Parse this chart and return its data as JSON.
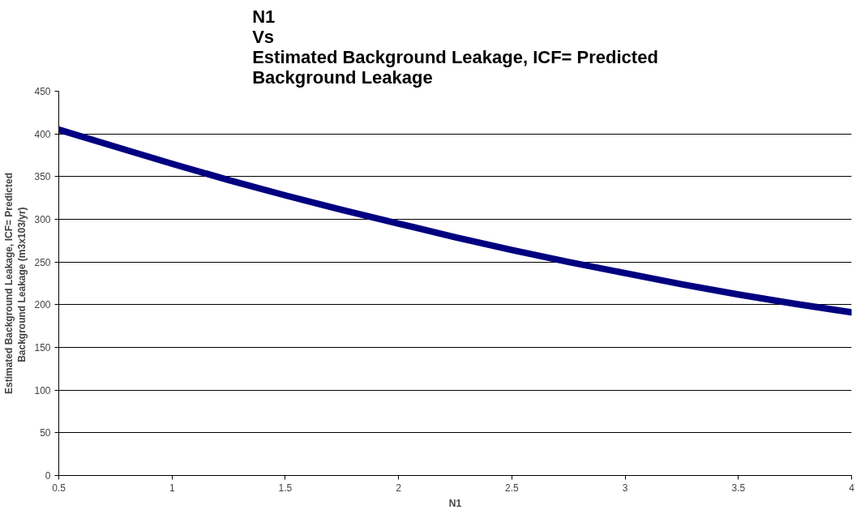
{
  "chart_data": {
    "type": "line",
    "title": "N1\nVs\nEstimated Background Leakage, ICF= Predicted\nBackground Leakage",
    "xlabel": "N1",
    "ylabel": "Estimated Background Leakage, ICF= Predicted\nBackground Leakage  (m3x103/yr)",
    "x": [
      0.5,
      0.75,
      1,
      1.25,
      1.5,
      1.75,
      2,
      2.25,
      2.5,
      2.75,
      3,
      3.25,
      3.5,
      3.75,
      4
    ],
    "series": [
      {
        "color": "#000080",
        "values": [
          405,
          385,
          365,
          346,
          328,
          311,
          295,
          279,
          264,
          250,
          237,
          224,
          212,
          201,
          191
        ]
      }
    ],
    "xlim": [
      0.5,
      4
    ],
    "xticks": [
      0.5,
      1,
      1.5,
      2,
      2.5,
      3,
      3.5,
      4
    ],
    "ylim": [
      0,
      450
    ],
    "yticks": [
      0,
      50,
      100,
      150,
      200,
      250,
      300,
      350,
      400,
      450
    ],
    "grid": "y",
    "marker": "none",
    "line_style": "solid"
  }
}
